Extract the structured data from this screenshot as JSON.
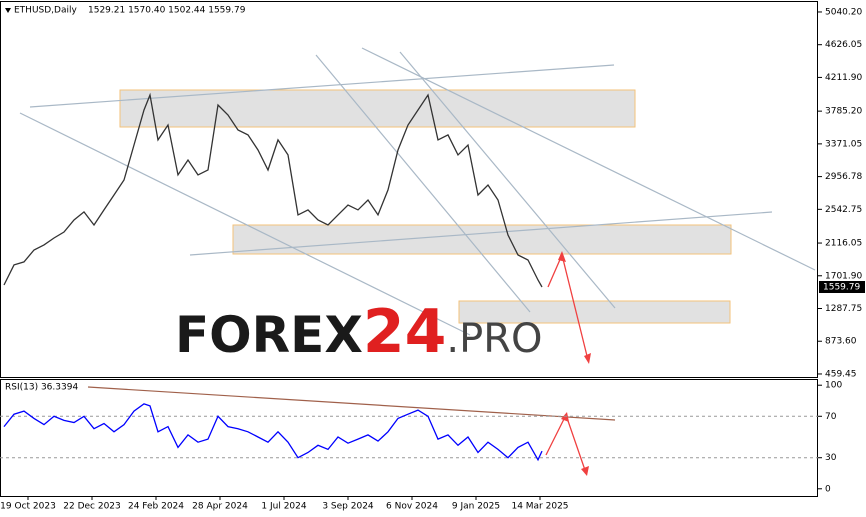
{
  "watermark": [
    "FOREX",
    "24",
    ".PRO"
  ],
  "chart_data": [
    {
      "type": "line",
      "title": "ETHUSD,Daily",
      "subtitle": "1529.21 1570.40 1502.44 1559.79",
      "x": [
        "2023-09-25",
        "2023-10-05",
        "2023-10-15",
        "2023-10-25",
        "2023-11-04",
        "2023-11-14",
        "2023-11-24",
        "2023-12-04",
        "2023-12-14",
        "2023-12-24",
        "2024-01-03",
        "2024-01-13",
        "2024-01-23",
        "2024-02-02",
        "2024-02-12",
        "2024-02-18",
        "2024-02-26",
        "2024-03-07",
        "2024-03-17",
        "2024-03-27",
        "2024-04-06",
        "2024-04-16",
        "2024-04-26",
        "2024-05-06",
        "2024-05-16",
        "2024-05-26",
        "2024-06-05",
        "2024-06-15",
        "2024-06-25",
        "2024-07-05",
        "2024-07-15",
        "2024-07-25",
        "2024-08-04",
        "2024-08-14",
        "2024-08-24",
        "2024-09-03",
        "2024-09-13",
        "2024-09-23",
        "2024-10-03",
        "2024-10-13",
        "2024-10-23",
        "2024-11-02",
        "2024-11-12",
        "2024-11-22",
        "2024-12-02",
        "2024-12-12",
        "2024-12-22",
        "2025-01-01",
        "2025-01-11",
        "2025-01-21",
        "2025-01-31",
        "2025-02-10",
        "2025-02-20",
        "2025-03-02",
        "2025-03-12",
        "2025-03-16"
      ],
      "series": [
        {
          "name": "ETHUSD",
          "color": "#333333",
          "values": [
            1585,
            1840,
            1877,
            2028,
            2092,
            2180,
            2256,
            2408,
            2510,
            2345,
            2535,
            2724,
            2914,
            3357,
            3800,
            3990,
            3421,
            3610,
            2978,
            3167,
            2978,
            3041,
            3863,
            3737,
            3547,
            3484,
            3294,
            3041,
            3421,
            3231,
            2472,
            2535,
            2408,
            2345,
            2472,
            2598,
            2535,
            2661,
            2472,
            2788,
            3294,
            3610,
            3800,
            3990,
            3421,
            3484,
            3231,
            3357,
            2724,
            2851,
            2661,
            2218,
            1965,
            1902,
            1649,
            1559.79
          ]
        }
      ],
      "xlim": [
        "2023-09-21",
        "2025-12-17"
      ],
      "ylim": [
        421,
        5141
      ],
      "yticks": [
        {
          "value": 5040.2,
          "label": "5040.20"
        },
        4626.05,
        {
          "value": 4211.9,
          "label": "4211.90"
        },
        {
          "value": 3785.2,
          "label": "3785.20"
        },
        3371.05,
        2956.78,
        2542.75,
        2116.05,
        {
          "value": 1701.9,
          "label": "1701.90"
        },
        1287.75,
        {
          "value": 873.6,
          "label": "873.60"
        },
        459.45
      ],
      "grid": false
    },
    {
      "type": "line",
      "title": "RSI(13) 36.3394",
      "series": [
        {
          "name": "RSI(13)",
          "color": "#0000ff",
          "values": [
            60,
            72,
            75,
            68,
            62,
            70,
            66,
            64,
            70,
            58,
            63,
            55,
            62,
            75,
            82,
            80,
            55,
            60,
            40,
            52,
            45,
            48,
            70,
            60,
            58,
            55,
            50,
            45,
            55,
            45,
            30,
            35,
            42,
            38,
            50,
            44,
            48,
            52,
            46,
            55,
            68,
            72,
            76,
            70,
            48,
            52,
            42,
            50,
            35,
            45,
            38,
            30,
            40,
            45,
            28,
            36.3394
          ]
        }
      ],
      "xlim": [
        "2023-09-21",
        "2025-12-17"
      ],
      "xticks": [
        {
          "value": "2023-10-19",
          "label": "19 Oct 2023"
        },
        {
          "value": "2023-12-22",
          "label": "22 Dec 2023"
        },
        {
          "value": "2024-02-24",
          "label": "24 Feb 2024"
        },
        {
          "value": "2024-04-28",
          "label": "28 Apr 2024"
        },
        {
          "value": "2024-07-01",
          "label": "1 Jul 2024"
        },
        {
          "value": "2024-09-03",
          "label": "3 Sep 2024"
        },
        {
          "value": "2024-11-06",
          "label": "6 Nov 2024"
        },
        {
          "value": "2025-01-09",
          "label": "9 Jan 2025"
        },
        {
          "value": "2025-03-14",
          "label": "14 Mar 2025"
        }
      ],
      "ylim": [
        -6,
        106
      ],
      "yticks": [
        100,
        70,
        30,
        0
      ],
      "grid": true
    }
  ]
}
